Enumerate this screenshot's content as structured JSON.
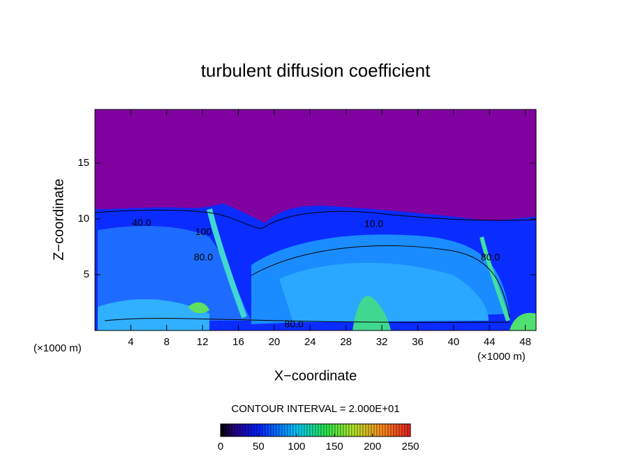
{
  "chart_data": {
    "type": "contour",
    "title": "turbulent diffusion coefficient",
    "xlabel": "X−coordinate",
    "ylabel": "Z−coordinate",
    "x_unit": "(×1000 m)",
    "x_unit_right": "(×1000 m)",
    "xlim": [
      0,
      49.2
    ],
    "ylim": [
      0,
      19.8
    ],
    "xticks": [
      4,
      8,
      12,
      16,
      20,
      24,
      28,
      32,
      36,
      40,
      44,
      48
    ],
    "yticks": [
      5,
      10,
      15
    ],
    "annotations": [
      {
        "text": "40.0",
        "x": 5.2,
        "y": 9.6
      },
      {
        "text": "100",
        "x": 12.1,
        "y": 8.8
      },
      {
        "text": "80.0",
        "x": 12.1,
        "y": 6.5
      },
      {
        "text": "10.0",
        "x": 31.1,
        "y": 9.5
      },
      {
        "text": "80.0",
        "x": 44.1,
        "y": 6.5
      },
      {
        "text": "80.0",
        "x": 22.2,
        "y": 0.5
      }
    ],
    "contour_interval": "CONTOUR INTERVAL = 2.000E+01",
    "colorbar": {
      "clim": [
        0,
        250
      ],
      "ticks": [
        0,
        50,
        100,
        150,
        200,
        250
      ]
    }
  }
}
